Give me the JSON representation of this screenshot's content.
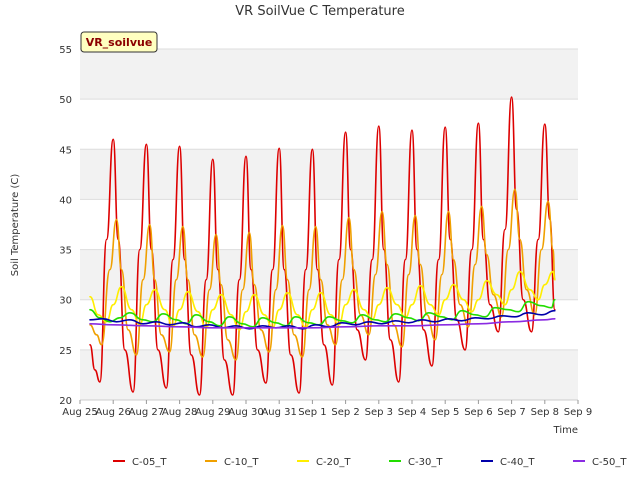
{
  "chart_data": {
    "type": "line",
    "title": "VR SoilVue C Temperature",
    "xlabel": "Time",
    "ylabel": "Soil Temperature (C)",
    "site_label": "VR_soilvue",
    "ylim": [
      20,
      55
    ],
    "yticks": [
      20,
      25,
      30,
      35,
      40,
      45,
      50,
      55
    ],
    "xlim": [
      0,
      15
    ],
    "xticks": [
      {
        "x": 0,
        "label": "Aug 25"
      },
      {
        "x": 1,
        "label": "Aug 26"
      },
      {
        "x": 2,
        "label": "Aug 27"
      },
      {
        "x": 3,
        "label": "Aug 28"
      },
      {
        "x": 4,
        "label": "Aug 29"
      },
      {
        "x": 5,
        "label": "Aug 30"
      },
      {
        "x": 6,
        "label": "Aug 31"
      },
      {
        "x": 7,
        "label": "Sep 1"
      },
      {
        "x": 8,
        "label": "Sep 2"
      },
      {
        "x": 9,
        "label": "Sep 3"
      },
      {
        "x": 10,
        "label": "Sep 4"
      },
      {
        "x": 11,
        "label": "Sep 5"
      },
      {
        "x": 12,
        "label": "Sep 6"
      },
      {
        "x": 13,
        "label": "Sep 7"
      },
      {
        "x": 14,
        "label": "Sep 8"
      },
      {
        "x": 15,
        "label": "Sep 9"
      }
    ],
    "grid": "horizontal bands",
    "legend": "bottom",
    "series": [
      {
        "name": "C-05_T",
        "color": "#dd0000",
        "x": [
          0.3,
          0.45,
          0.6,
          0.8,
          1.0,
          1.15,
          1.35,
          1.6,
          1.8,
          2.0,
          2.15,
          2.35,
          2.6,
          2.8,
          3.0,
          3.15,
          3.35,
          3.6,
          3.8,
          4.0,
          4.15,
          4.35,
          4.6,
          4.8,
          5.0,
          5.15,
          5.35,
          5.6,
          5.8,
          6.0,
          6.15,
          6.35,
          6.6,
          6.8,
          7.0,
          7.15,
          7.35,
          7.6,
          7.8,
          8.0,
          8.15,
          8.35,
          8.6,
          8.8,
          9.0,
          9.15,
          9.35,
          9.6,
          9.8,
          10.0,
          10.15,
          10.35,
          10.6,
          10.8,
          11.0,
          11.15,
          11.35,
          11.6,
          11.8,
          12.0,
          12.15,
          12.35,
          12.6,
          12.8,
          13.0,
          13.15,
          13.35,
          13.6,
          13.8,
          14.0,
          14.15,
          14.3
        ],
        "y": [
          25.5,
          23.0,
          21.8,
          36.0,
          46.0,
          36.0,
          25.0,
          20.8,
          35.0,
          45.5,
          35.0,
          25.0,
          21.2,
          34.0,
          45.3,
          34.0,
          24.5,
          20.5,
          32.0,
          44.0,
          33.0,
          24.0,
          20.5,
          32.0,
          44.3,
          33.0,
          25.0,
          21.7,
          33.0,
          45.1,
          33.0,
          24.5,
          20.7,
          33.0,
          45.0,
          33.0,
          25.5,
          21.5,
          34.0,
          46.7,
          35.0,
          27.0,
          24.0,
          34.0,
          47.3,
          35.0,
          26.0,
          21.8,
          34.0,
          46.9,
          35.0,
          27.0,
          23.4,
          34.0,
          47.2,
          36.0,
          28.0,
          25.0,
          35.0,
          47.6,
          36.0,
          29.5,
          26.8,
          37.0,
          50.2,
          39.0,
          30.0,
          26.8,
          36.0,
          47.5,
          38.0,
          29.0
        ]
      },
      {
        "name": "C-10_T",
        "color": "#f0a000",
        "x": [
          0.3,
          0.5,
          0.65,
          0.9,
          1.1,
          1.25,
          1.45,
          1.7,
          1.9,
          2.1,
          2.25,
          2.45,
          2.7,
          2.9,
          3.1,
          3.25,
          3.45,
          3.7,
          3.9,
          4.1,
          4.25,
          4.45,
          4.7,
          4.9,
          5.1,
          5.25,
          5.45,
          5.7,
          5.9,
          6.1,
          6.25,
          6.45,
          6.7,
          6.9,
          7.1,
          7.25,
          7.45,
          7.7,
          7.9,
          8.1,
          8.25,
          8.45,
          8.7,
          8.9,
          9.1,
          9.25,
          9.45,
          9.7,
          9.9,
          10.1,
          10.25,
          10.45,
          10.7,
          10.9,
          11.1,
          11.25,
          11.45,
          11.7,
          11.9,
          12.1,
          12.25,
          12.45,
          12.7,
          12.9,
          13.1,
          13.25,
          13.45,
          13.7,
          13.9,
          14.1,
          14.25,
          14.3
        ],
        "y": [
          27.5,
          26.5,
          25.5,
          33.0,
          38.0,
          33.0,
          27.0,
          24.5,
          32.0,
          37.5,
          32.0,
          26.5,
          24.8,
          32.0,
          37.3,
          32.0,
          26.5,
          24.3,
          31.0,
          36.5,
          31.5,
          26.0,
          24.0,
          31.0,
          36.7,
          31.5,
          27.0,
          24.8,
          31.0,
          37.4,
          32.0,
          26.5,
          24.3,
          31.0,
          37.3,
          32.0,
          27.5,
          25.5,
          32.0,
          38.2,
          33.0,
          28.5,
          26.5,
          32.5,
          38.8,
          33.5,
          27.5,
          25.3,
          32.5,
          38.4,
          33.5,
          28.5,
          26.0,
          32.5,
          38.8,
          34.0,
          29.5,
          27.3,
          33.5,
          39.3,
          34.5,
          30.5,
          28.3,
          35.0,
          41.0,
          36.0,
          31.0,
          28.5,
          35.0,
          39.8,
          35.0,
          32.0
        ]
      },
      {
        "name": "C-20_T",
        "color": "#ffee00",
        "x": [
          0.3,
          0.55,
          0.8,
          1.0,
          1.25,
          1.55,
          1.8,
          2.0,
          2.25,
          2.55,
          2.8,
          3.0,
          3.25,
          3.55,
          3.8,
          4.0,
          4.25,
          4.55,
          4.8,
          5.0,
          5.25,
          5.55,
          5.8,
          6.0,
          6.25,
          6.55,
          6.8,
          7.0,
          7.25,
          7.55,
          7.8,
          8.0,
          8.25,
          8.55,
          8.8,
          9.0,
          9.25,
          9.55,
          9.8,
          10.0,
          10.25,
          10.55,
          10.8,
          11.0,
          11.25,
          11.55,
          11.8,
          12.0,
          12.25,
          12.55,
          12.8,
          13.0,
          13.25,
          13.55,
          13.8,
          14.0,
          14.25,
          14.3
        ],
        "y": [
          30.3,
          28.5,
          27.8,
          29.5,
          31.3,
          29.0,
          27.5,
          29.5,
          31.0,
          29.0,
          27.3,
          29.0,
          30.8,
          28.8,
          27.2,
          29.0,
          30.5,
          28.5,
          27.0,
          28.8,
          30.5,
          28.5,
          27.2,
          29.0,
          30.7,
          28.5,
          27.2,
          29.0,
          30.7,
          28.5,
          27.5,
          29.5,
          31.0,
          29.0,
          28.0,
          29.5,
          31.2,
          29.5,
          28.2,
          29.5,
          31.4,
          29.5,
          28.5,
          30.0,
          31.5,
          30.0,
          28.8,
          30.0,
          31.9,
          30.5,
          29.5,
          31.0,
          32.8,
          31.0,
          30.0,
          31.5,
          32.8,
          32.0
        ]
      },
      {
        "name": "C-30_T",
        "color": "#22dd00",
        "x": [
          0.3,
          0.6,
          0.9,
          1.2,
          1.5,
          1.9,
          2.2,
          2.5,
          2.9,
          3.2,
          3.5,
          3.9,
          4.2,
          4.5,
          4.9,
          5.2,
          5.5,
          5.9,
          6.2,
          6.5,
          6.9,
          7.2,
          7.5,
          7.9,
          8.2,
          8.5,
          8.9,
          9.2,
          9.5,
          9.9,
          10.2,
          10.5,
          10.9,
          11.2,
          11.5,
          11.9,
          12.2,
          12.5,
          12.9,
          13.2,
          13.5,
          13.9,
          14.2,
          14.3
        ],
        "y": [
          29.0,
          28.2,
          27.8,
          28.2,
          28.7,
          28.0,
          27.8,
          28.6,
          28.0,
          27.6,
          28.5,
          27.8,
          27.4,
          28.3,
          27.6,
          27.3,
          28.2,
          27.7,
          27.4,
          28.3,
          27.7,
          27.5,
          28.3,
          27.9,
          27.7,
          28.5,
          28.0,
          27.8,
          28.6,
          28.2,
          27.9,
          28.7,
          28.3,
          28.0,
          28.9,
          28.5,
          28.3,
          29.2,
          29.0,
          28.8,
          29.8,
          29.4,
          29.2,
          30.0
        ]
      },
      {
        "name": "C-40_T",
        "color": "#0000aa",
        "x": [
          0.3,
          0.7,
          1.1,
          1.5,
          1.9,
          2.3,
          2.7,
          3.1,
          3.5,
          3.9,
          4.3,
          4.7,
          5.1,
          5.5,
          5.9,
          6.3,
          6.7,
          7.1,
          7.5,
          7.9,
          8.3,
          8.7,
          9.1,
          9.5,
          9.9,
          10.3,
          10.7,
          11.1,
          11.5,
          11.9,
          12.3,
          12.7,
          13.1,
          13.5,
          13.9,
          14.3
        ],
        "y": [
          28.0,
          28.1,
          27.8,
          28.0,
          27.6,
          27.8,
          27.5,
          27.7,
          27.3,
          27.5,
          27.2,
          27.4,
          27.1,
          27.4,
          27.2,
          27.4,
          27.1,
          27.5,
          27.3,
          27.7,
          27.5,
          27.8,
          27.6,
          27.9,
          27.7,
          28.0,
          27.8,
          28.1,
          27.9,
          28.2,
          28.1,
          28.4,
          28.3,
          28.7,
          28.5,
          28.9
        ]
      },
      {
        "name": "C-50_T",
        "color": "#8a2be2",
        "x": [
          0.3,
          1.0,
          2.0,
          3.0,
          4.0,
          5.0,
          6.0,
          7.0,
          8.0,
          9.0,
          10.0,
          11.0,
          12.0,
          13.0,
          14.0,
          14.3
        ],
        "y": [
          27.6,
          27.5,
          27.4,
          27.3,
          27.2,
          27.2,
          27.2,
          27.2,
          27.3,
          27.4,
          27.4,
          27.5,
          27.6,
          27.8,
          28.0,
          28.1
        ]
      }
    ]
  }
}
